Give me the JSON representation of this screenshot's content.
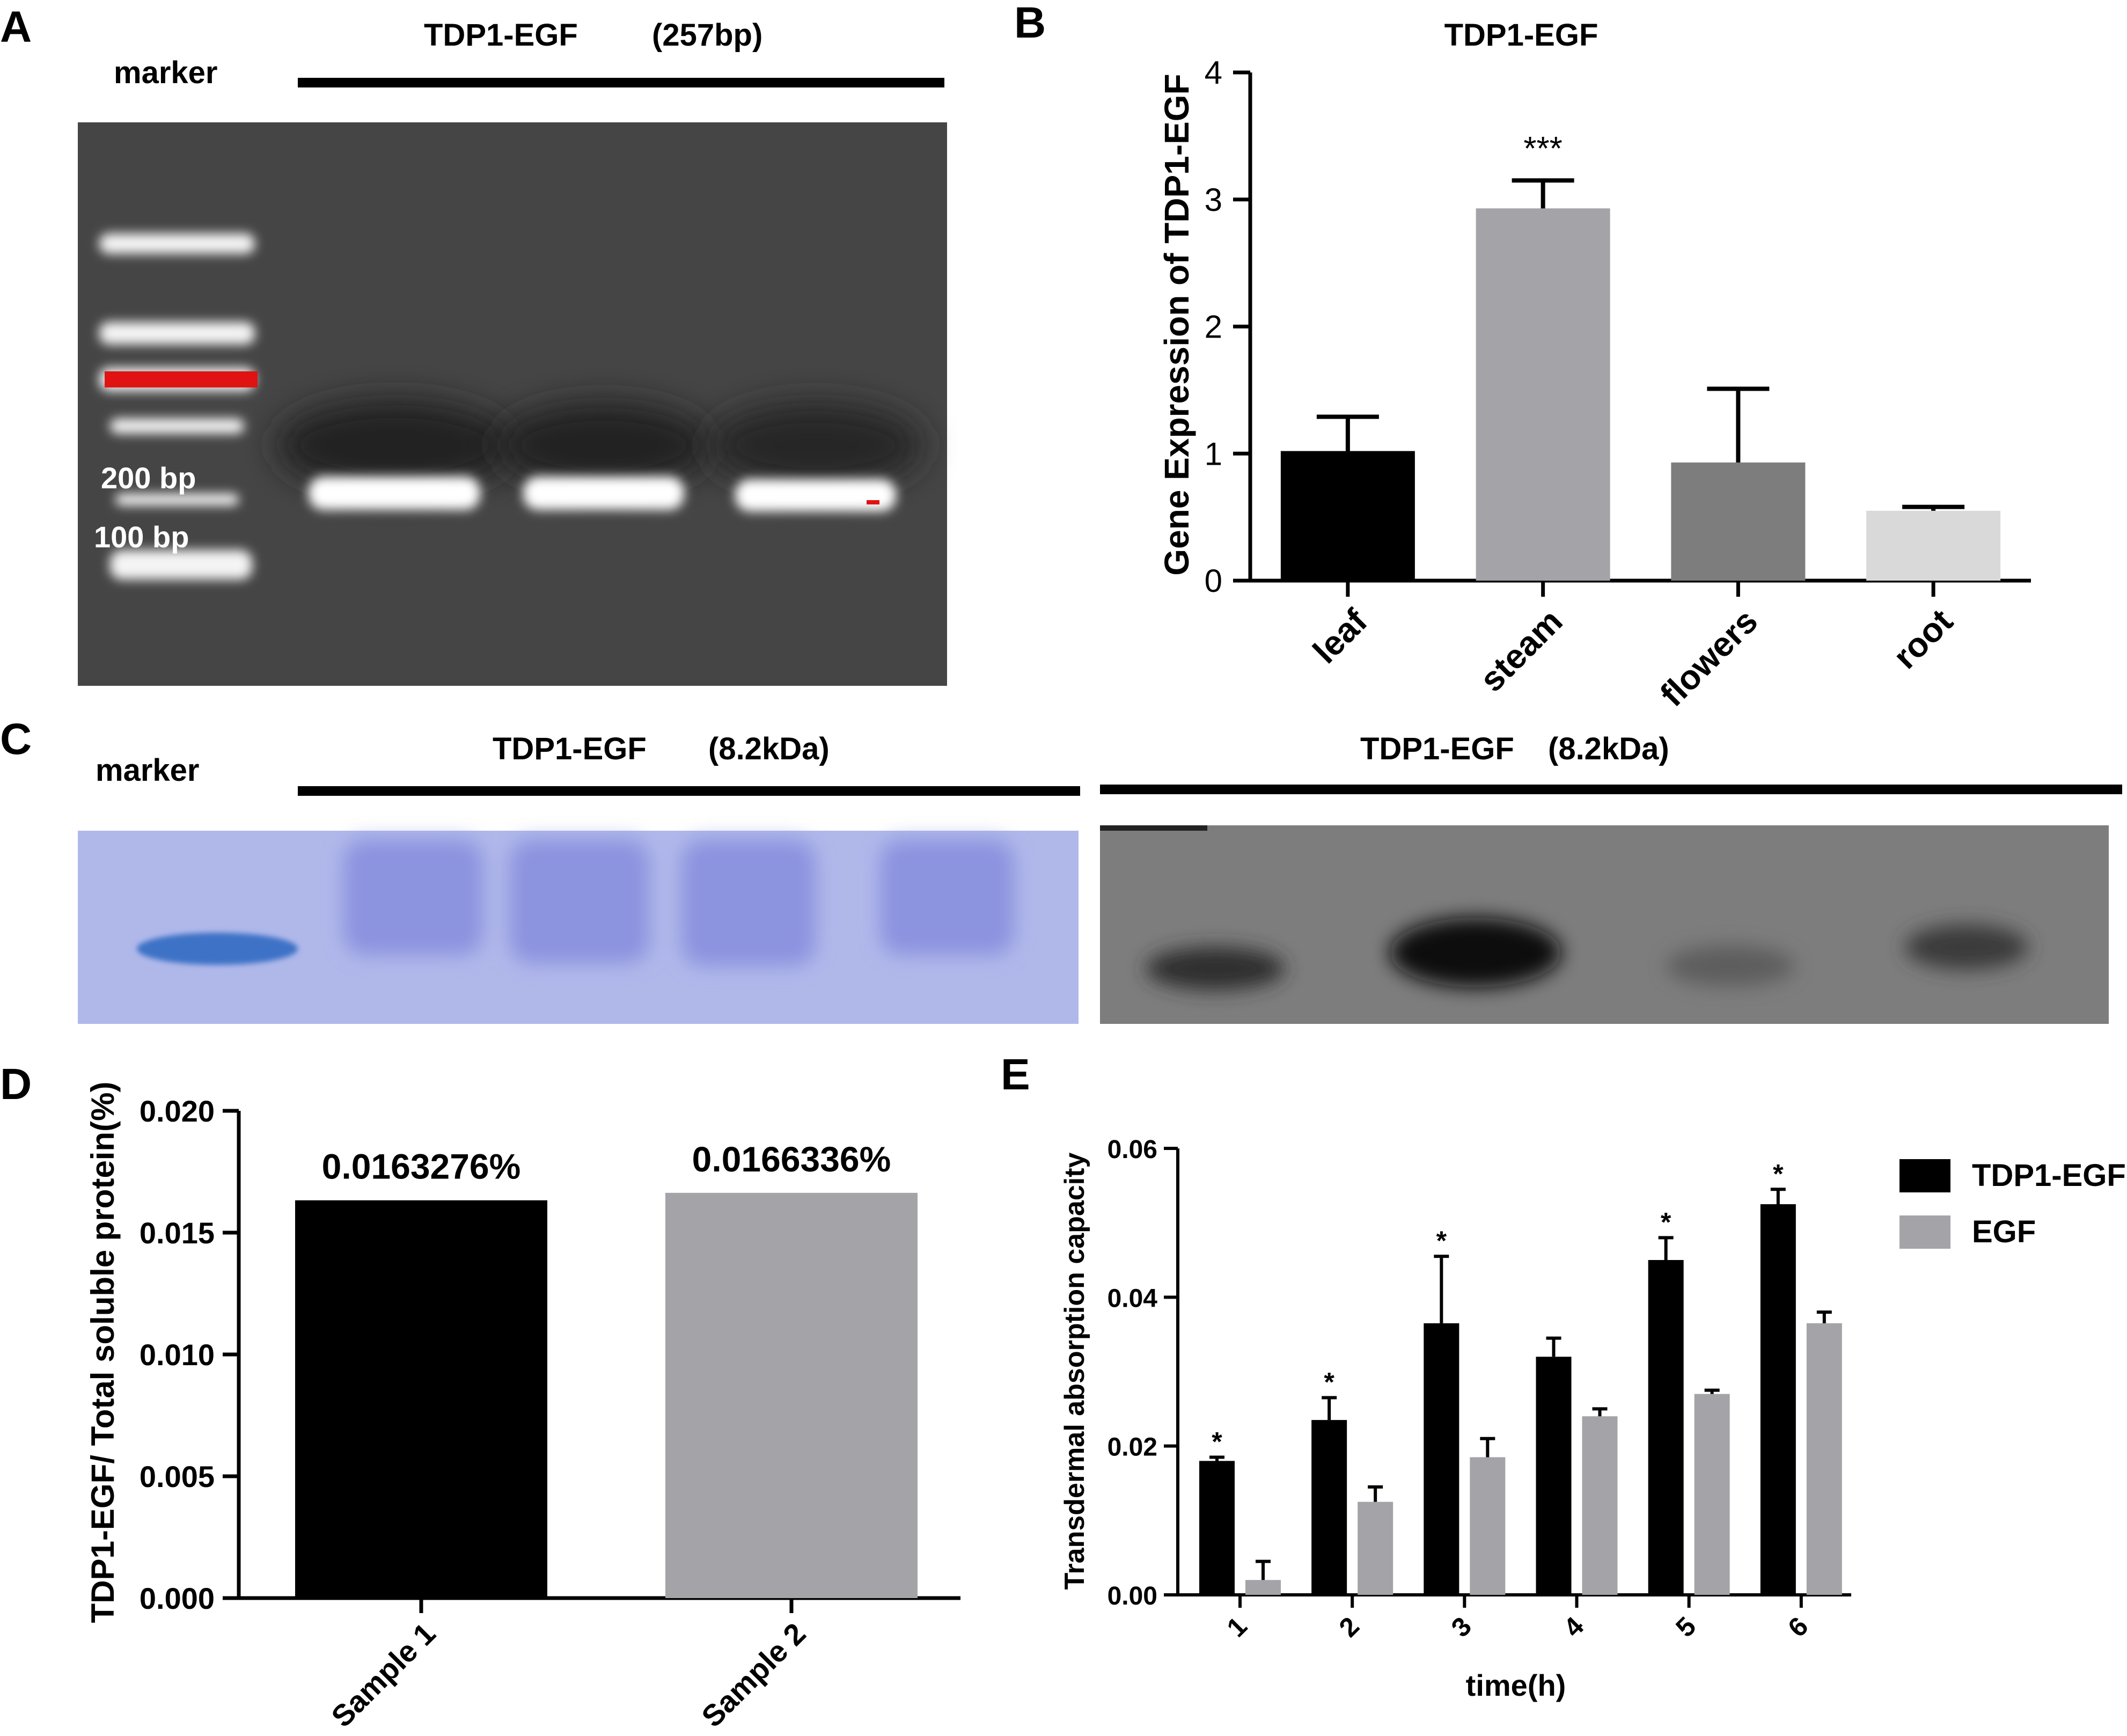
{
  "panel_letters": {
    "a": "A",
    "b": "B",
    "c": "C",
    "d": "D",
    "e": "E"
  },
  "panel_a": {
    "title": "TDP1-EGF",
    "size": "(257bp)",
    "marker_label": "marker",
    "ladder_200": "200 bp",
    "ladder_100": "100 bp"
  },
  "panel_c": {
    "marker_label": "marker",
    "left_title": "TDP1-EGF",
    "left_size": "(8.2kDa)",
    "right_title": "TDP1-EGF",
    "right_size": "(8.2kDa)"
  },
  "chart_data": [
    {
      "type": "bar",
      "panel": "B",
      "title": "TDP1-EGF",
      "xlabel": "",
      "ylabel": "Gene Expression of TDP1-EGF",
      "categories": [
        "leaf",
        "steam",
        "flowers",
        "root"
      ],
      "values": [
        1.02,
        2.93,
        0.93,
        0.55
      ],
      "errors": [
        0.27,
        0.22,
        0.58,
        0.03
      ],
      "annotations": [
        "",
        "***",
        "",
        ""
      ],
      "colors": [
        "#000000",
        "#a3a3a8",
        "#7d7d7d",
        "#d9d9d9"
      ],
      "ylim": [
        0,
        4
      ],
      "yticks": [
        "0",
        "1",
        "2",
        "3",
        "4"
      ]
    },
    {
      "type": "bar",
      "panel": "D",
      "xlabel": "",
      "ylabel": "TDP1-EGF/ Total soluble protein(%)",
      "categories": [
        "Sample 1",
        "Sample 2"
      ],
      "values": [
        0.0163276,
        0.0166336
      ],
      "data_labels": [
        "0.0163276%",
        "0.0166336%"
      ],
      "colors": [
        "#000000",
        "#a3a3a8"
      ],
      "ylim": [
        0,
        0.02
      ],
      "yticks": [
        "0.000",
        "0.005",
        "0.010",
        "0.015",
        "0.020"
      ]
    },
    {
      "type": "bar",
      "panel": "E",
      "xlabel": "time(h)",
      "ylabel": "Transdermal absorption capacity",
      "categories": [
        "1",
        "2",
        "3",
        "4",
        "5",
        "6"
      ],
      "series": [
        {
          "name": "TDP1-EGF",
          "color": "#000000",
          "values": [
            0.018,
            0.0235,
            0.0365,
            0.032,
            0.045,
            0.0525
          ],
          "errors": [
            0.0005,
            0.003,
            0.009,
            0.0025,
            0.003,
            0.002
          ]
        },
        {
          "name": "EGF",
          "color": "#a3a3a8",
          "values": [
            0.002,
            0.0125,
            0.0185,
            0.024,
            0.027,
            0.0365
          ],
          "errors": [
            0.0025,
            0.002,
            0.0025,
            0.001,
            0.0005,
            0.0015
          ]
        }
      ],
      "annotations": [
        "*",
        "*",
        "*",
        "",
        "*",
        "*"
      ],
      "ylim": [
        0,
        0.06
      ],
      "yticks": [
        "0.00",
        "0.02",
        "0.04",
        "0.06"
      ],
      "legend_position": "top-right"
    }
  ]
}
